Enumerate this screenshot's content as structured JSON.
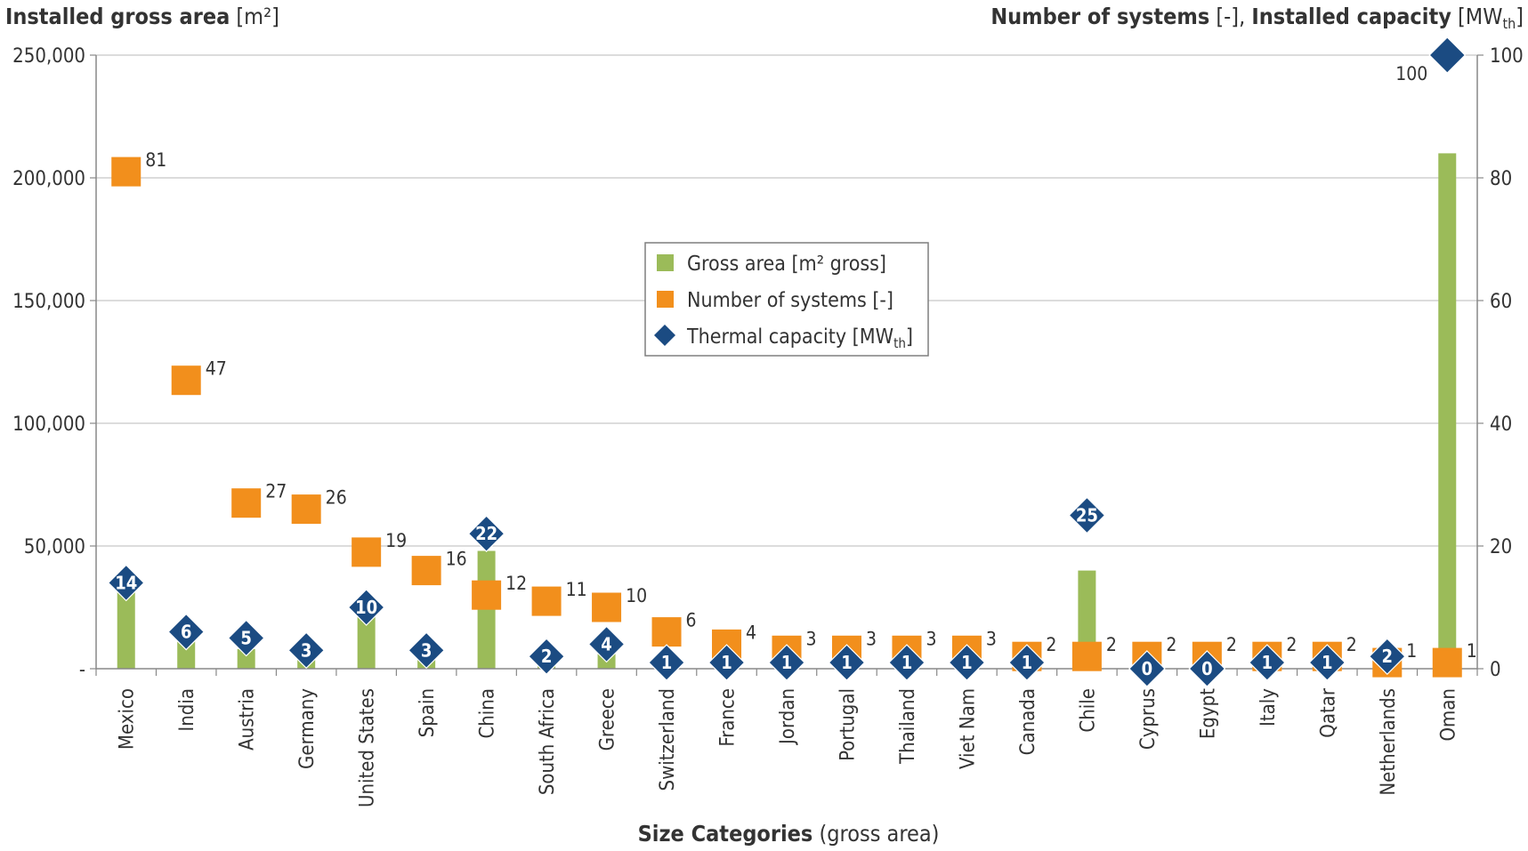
{
  "chart_data": {
    "type": "bar",
    "xlabel_bold": "Size Categories",
    "xlabel_rest": " (gross area)",
    "y_left_title_bold": "Installed gross area",
    "y_left_title_rest": " [m²]",
    "y_right_title_bold": "Number of systems",
    "y_right_title_mid": " [-], ",
    "y_right_title_bold2": "Installed capacity",
    "y_right_title_rest": " [MW",
    "y_right_title_sub": "th",
    "y_right_title_end": "]",
    "y_left_ticks": [
      {
        "value": 0,
        "label": "-"
      },
      {
        "value": 50000,
        "label": "50,000"
      },
      {
        "value": 100000,
        "label": "100,000"
      },
      {
        "value": 150000,
        "label": "150,000"
      },
      {
        "value": 200000,
        "label": "200,000"
      },
      {
        "value": 250000,
        "label": "250,000"
      }
    ],
    "y_right_ticks": [
      {
        "value": 0,
        "label": "0"
      },
      {
        "value": 20,
        "label": "20"
      },
      {
        "value": 40,
        "label": "40"
      },
      {
        "value": 60,
        "label": "60"
      },
      {
        "value": 80,
        "label": "80"
      },
      {
        "value": 100,
        "label": "100"
      }
    ],
    "ylim_left": [
      0,
      250000
    ],
    "ylim_right": [
      0,
      100
    ],
    "grid": true,
    "legend_position": "center",
    "categories": [
      "Mexico",
      "India",
      "Austria",
      "Germany",
      "United States",
      "Spain",
      "China",
      "South Africa",
      "Greece",
      "Switzerland",
      "France",
      "Jordan",
      "Portugal",
      "Thailand",
      "Viet Nam",
      "Canada",
      "Chile",
      "Cyprus",
      "Egypt",
      "Italy",
      "Qatar",
      "Netherlands",
      "Oman"
    ],
    "series": [
      {
        "name": "Gross area [m² gross]",
        "axis": "left",
        "color": "#9bbb59",
        "values": [
          32000,
          13000,
          8000,
          6000,
          25000,
          4000,
          48000,
          2500,
          6000,
          2000,
          3000,
          1500,
          1500,
          1500,
          1500,
          1500,
          40000,
          800,
          800,
          1000,
          1000,
          800,
          210000
        ]
      },
      {
        "name": "Number of systems [-]",
        "axis": "right",
        "color": "#f28f1c",
        "values": [
          81,
          47,
          27,
          26,
          19,
          16,
          12,
          11,
          10,
          6,
          4,
          3,
          3,
          3,
          3,
          2,
          2,
          2,
          2,
          2,
          2,
          1,
          1
        ]
      },
      {
        "name": "Thermal capacity [MW",
        "name_sub": "th",
        "name_end": "]",
        "axis": "right",
        "color": "#1b4b82",
        "values": [
          14,
          6,
          5,
          3,
          10,
          3,
          22,
          2,
          4,
          1,
          1,
          1,
          1,
          1,
          1,
          1,
          25,
          0,
          0,
          1,
          1,
          2,
          100
        ]
      }
    ]
  }
}
